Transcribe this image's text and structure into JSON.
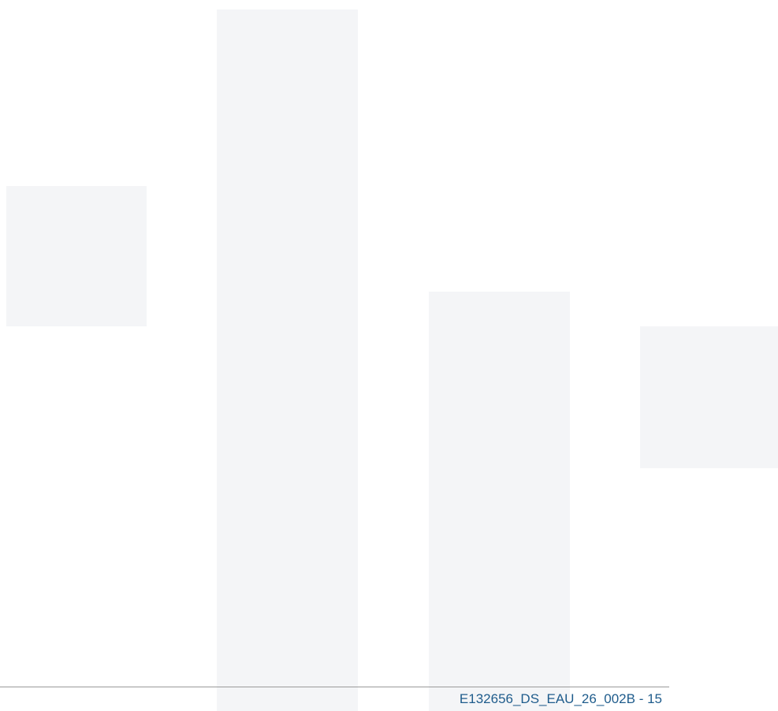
{
  "footer": {
    "text": "E132656_DS_EAU_26_002B - 15"
  }
}
